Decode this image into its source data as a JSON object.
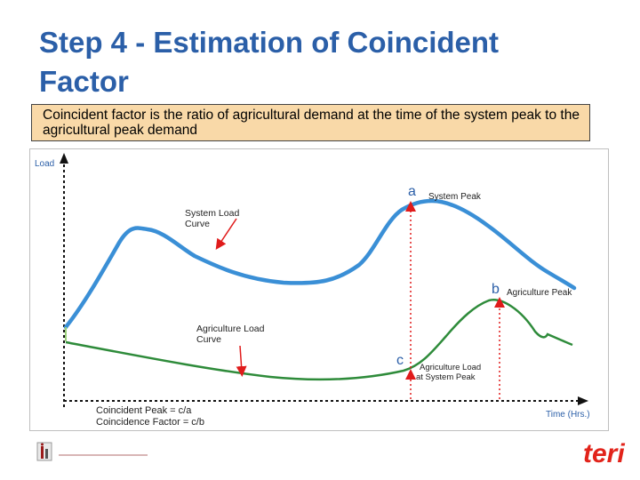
{
  "slide": {
    "title_line1": "Step 4 - Estimation of Coincident",
    "title_line2": "Factor",
    "definition": "Coincident factor is the ratio of agricultural demand at the time of the system peak to the agricultural peak demand"
  },
  "diagram": {
    "y_axis_label": "Load",
    "x_axis_label": "Time (Hrs.)",
    "system_curve_label_line1": "System Load",
    "system_curve_label_line2": "Curve",
    "agri_curve_label_line1": "Agriculture Load",
    "agri_curve_label_line2": "Curve",
    "point_a": "a",
    "point_a_label": "System Peak",
    "point_b": "b",
    "point_b_label": "Agriculture Peak",
    "point_c": "c",
    "point_c_label_line1": "Agriculture Load",
    "point_c_label_line2": "at System Peak",
    "formula_1": "Coincident Peak = c/a",
    "formula_2": "Coincidence Factor = c/b",
    "colors": {
      "system_curve": "#3a8fd6",
      "agri_curve": "#2e8b3a",
      "marker": "#e01b1b",
      "axis": "#111111"
    }
  },
  "footer": {
    "right_logo_text": "teri",
    "left_logo_text": "..."
  }
}
